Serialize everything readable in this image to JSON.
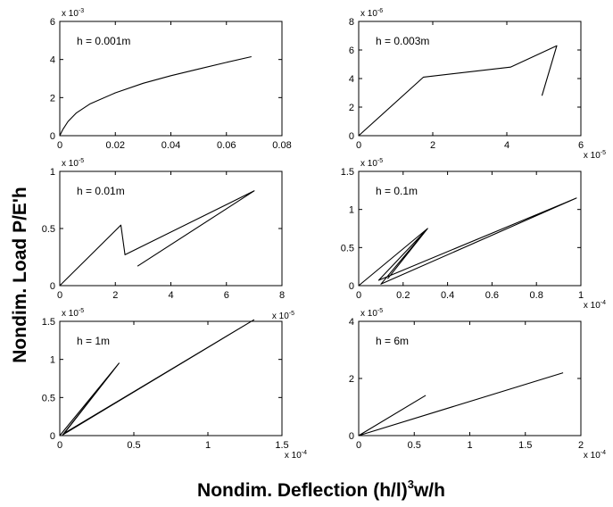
{
  "figure": {
    "ylabel": "Nondim. Load P/E'h",
    "xlabel_main": "Nondim. Deflection (h/l)",
    "xlabel_sup": "3",
    "xlabel_tail": "w/h"
  },
  "chart_data": [
    {
      "type": "line",
      "annotation": "h = 0.001m",
      "xlim": [
        0,
        0.08
      ],
      "ylim": [
        0,
        6
      ],
      "x_ticks": [
        0,
        0.02,
        0.04,
        0.06,
        0.08
      ],
      "x_tick_labels": [
        "0",
        "0.02",
        "0.04",
        "0.06",
        "0.08"
      ],
      "y_ticks": [
        0,
        2,
        4,
        6
      ],
      "y_tick_labels": [
        "0",
        "2",
        "4",
        "6"
      ],
      "x_multiplier": null,
      "y_multiplier": {
        "base": "x 10",
        "exp": "-3"
      },
      "series": [
        {
          "x": [
            0,
            0.001,
            0.003,
            0.006,
            0.011,
            0.02,
            0.03,
            0.04,
            0.05,
            0.06,
            0.069
          ],
          "y": [
            0,
            0.3,
            0.75,
            1.2,
            1.68,
            2.25,
            2.75,
            3.15,
            3.5,
            3.85,
            4.15
          ]
        }
      ]
    },
    {
      "type": "line",
      "annotation": "h = 0.003m",
      "xlim": [
        0,
        6
      ],
      "ylim": [
        0,
        8
      ],
      "x_ticks": [
        0,
        2,
        4,
        6
      ],
      "x_tick_labels": [
        "0",
        "2",
        "4",
        "6"
      ],
      "y_ticks": [
        0,
        2,
        4,
        6,
        8
      ],
      "y_tick_labels": [
        "0",
        "2",
        "4",
        "6",
        "8"
      ],
      "x_multiplier": {
        "base": "x 10",
        "exp": "-5"
      },
      "y_multiplier": {
        "base": "x 10",
        "exp": "-6"
      },
      "series": [
        {
          "x": [
            0,
            1.75,
            4.1,
            5.35,
            4.95
          ],
          "y": [
            0,
            4.1,
            4.8,
            6.3,
            2.8
          ]
        }
      ]
    },
    {
      "type": "line",
      "annotation": "h = 0.01m",
      "xlim": [
        0,
        8
      ],
      "ylim": [
        0,
        1
      ],
      "x_ticks": [
        0,
        2,
        4,
        6,
        8
      ],
      "x_tick_labels": [
        "0",
        "2",
        "4",
        "6",
        "8"
      ],
      "y_ticks": [
        0,
        0.5,
        1
      ],
      "y_tick_labels": [
        "0",
        "0.5",
        "1"
      ],
      "x_multiplier": null,
      "y_multiplier": {
        "base": "x 10",
        "exp": "-5"
      },
      "series": [
        {
          "x": [
            0,
            2.2,
            2.35,
            7.0,
            2.8
          ],
          "y": [
            0,
            0.53,
            0.27,
            0.83,
            0.17
          ]
        }
      ]
    },
    {
      "type": "line",
      "annotation": "h = 0.1m",
      "xlim": [
        0,
        1
      ],
      "ylim": [
        0,
        1.5
      ],
      "x_ticks": [
        0,
        0.2,
        0.4,
        0.6,
        0.8,
        1
      ],
      "x_tick_labels": [
        "0",
        "0.2",
        "0.4",
        "0.6",
        "0.8",
        "1"
      ],
      "y_ticks": [
        0,
        0.5,
        1,
        1.5
      ],
      "y_tick_labels": [
        "0",
        "0.5",
        "1",
        "1.5"
      ],
      "x_multiplier": {
        "base": "x 10",
        "exp": "-4"
      },
      "y_multiplier": {
        "base": "x 10",
        "exp": "-5"
      },
      "series": [
        {
          "x": [
            0,
            0.31,
            0.09,
            0.98,
            0.1,
            0.31,
            0.13
          ],
          "y": [
            0,
            0.75,
            0.07,
            1.15,
            0.02,
            0.75,
            0.09
          ]
        }
      ]
    },
    {
      "type": "line",
      "annotation": "h = 1m",
      "xlim": [
        0,
        1.5
      ],
      "ylim": [
        0,
        1.5
      ],
      "x_ticks": [
        0,
        0.5,
        1,
        1.5
      ],
      "x_tick_labels": [
        "0",
        "0.5",
        "1",
        "1.5"
      ],
      "y_ticks": [
        0,
        0.5,
        1,
        1.5
      ],
      "y_tick_labels": [
        "0",
        "0.5",
        "1",
        "1.5"
      ],
      "x_multiplier": {
        "base": "x 10",
        "exp": "-4"
      },
      "y_multiplier": {
        "base": "x 10",
        "exp": "-5"
      },
      "top_right_multiplier": {
        "base": "x 10",
        "exp": "-5"
      },
      "series": [
        {
          "x": [
            0,
            0.4,
            0.03,
            1.31,
            0.02,
            0.4,
            0
          ],
          "y": [
            0,
            0.95,
            0.03,
            1.52,
            0.01,
            0.95,
            0.0
          ]
        }
      ]
    },
    {
      "type": "line",
      "annotation": "h = 6m",
      "xlim": [
        0,
        2
      ],
      "ylim": [
        0,
        4
      ],
      "x_ticks": [
        0,
        0.5,
        1,
        1.5,
        2
      ],
      "x_tick_labels": [
        "0",
        "0.5",
        "1",
        "1.5",
        "2"
      ],
      "y_ticks": [
        0,
        2,
        4
      ],
      "y_tick_labels": [
        "0",
        "2",
        "4"
      ],
      "x_multiplier": {
        "base": "x 10",
        "exp": "-4"
      },
      "y_multiplier": {
        "base": "x 10",
        "exp": "-5"
      },
      "series": [
        {
          "x": [
            0,
            0.6,
            0,
            1.84
          ],
          "y": [
            0,
            1.4,
            0,
            2.2
          ]
        }
      ]
    }
  ]
}
